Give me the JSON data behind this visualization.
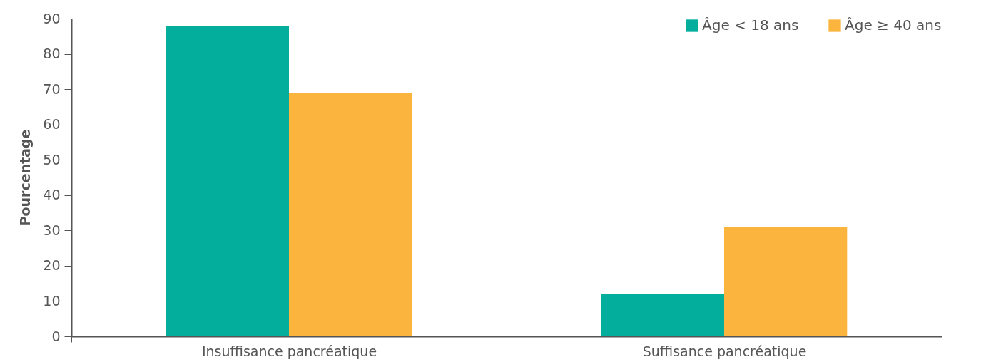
{
  "chart_data": {
    "type": "bar",
    "ylabel": "Pourcentage",
    "categories": [
      "Insuffisance pancréatique",
      "Suffisance pancréatique"
    ],
    "series": [
      {
        "name": "Âge < 18 ans",
        "color": "#03ae9c",
        "values": [
          88,
          12
        ]
      },
      {
        "name": "Âge ≥ 40 ans",
        "color": "#fbb53e",
        "values": [
          69,
          31
        ]
      }
    ],
    "ylim": [
      0,
      90
    ],
    "yticks": [
      0,
      10,
      20,
      30,
      40,
      50,
      60,
      70,
      80,
      90
    ],
    "grid": false,
    "legend": "top right"
  }
}
